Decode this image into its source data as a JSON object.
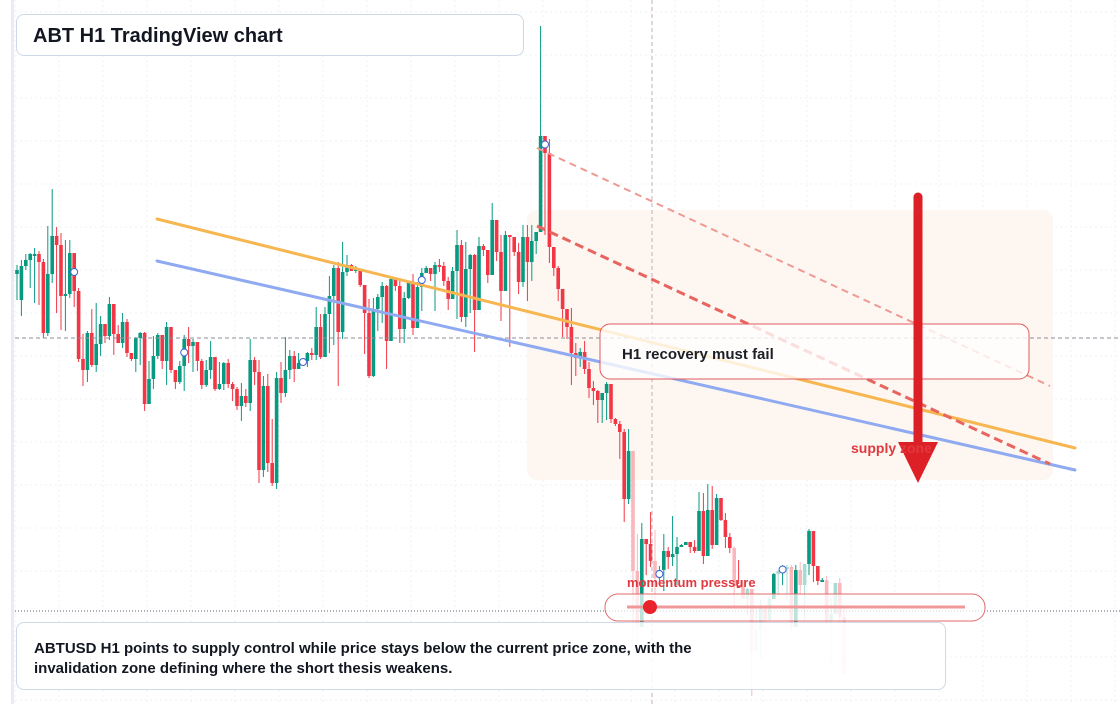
{
  "header": {
    "title": "ABT H1 TradingView chart"
  },
  "annotations": {
    "recovery_label": "H1 recovery must fail",
    "supply_label": "supply zone",
    "momentum_label": "momentum pressure",
    "caption": "ABTUSD H1 points to supply control while price stays below the current price zone, with the invalidation zone defining where the short thesis weakens."
  },
  "colors": {
    "up": "#089981",
    "down": "#f23645",
    "orange_line": "#f7b650",
    "blue_line": "#8faaf0",
    "trend_red": "#e8645f",
    "arrow_red": "#dd1f26"
  },
  "chart_data": {
    "type": "candlestick",
    "timeframe": "H1",
    "price_min": 0,
    "price_max": 704,
    "candles": [
      [
        274,
        270,
        300,
        265
      ],
      [
        300,
        266,
        316,
        260
      ],
      [
        266,
        260,
        270,
        254
      ],
      [
        260,
        254,
        288,
        253
      ],
      [
        254,
        254,
        303,
        248
      ],
      [
        254,
        262,
        305,
        251
      ],
      [
        262,
        333,
        338,
        259
      ],
      [
        333,
        274,
        336,
        226
      ],
      [
        274,
        236,
        283,
        189
      ],
      [
        236,
        245,
        313,
        227
      ],
      [
        245,
        296,
        330,
        233
      ],
      [
        296,
        294,
        331,
        240
      ],
      [
        294,
        253,
        298,
        240
      ],
      [
        253,
        291,
        307,
        271
      ],
      [
        291,
        359,
        362,
        288
      ],
      [
        359,
        370,
        386,
        334
      ],
      [
        370,
        333,
        382,
        331
      ],
      [
        333,
        365,
        367,
        309
      ],
      [
        365,
        344,
        372,
        303
      ],
      [
        344,
        324,
        356,
        316
      ],
      [
        324,
        336,
        343,
        326
      ],
      [
        336,
        304,
        340,
        297
      ],
      [
        304,
        334,
        355,
        328
      ],
      [
        334,
        343,
        338,
        325
      ],
      [
        343,
        322,
        348,
        313
      ],
      [
        322,
        353,
        357,
        319
      ],
      [
        353,
        359,
        361,
        355
      ],
      [
        359,
        338,
        372,
        337
      ],
      [
        338,
        333,
        365,
        332
      ],
      [
        333,
        404,
        411,
        332
      ],
      [
        404,
        379,
        381,
        361
      ],
      [
        379,
        356,
        389,
        336
      ],
      [
        356,
        335,
        359,
        333
      ],
      [
        335,
        361,
        369,
        356
      ],
      [
        361,
        327,
        385,
        322
      ],
      [
        327,
        370,
        373,
        348
      ],
      [
        370,
        382,
        389,
        370
      ],
      [
        382,
        366,
        384,
        361
      ],
      [
        366,
        339,
        391,
        335
      ],
      [
        339,
        346,
        363,
        327
      ],
      [
        346,
        342,
        372,
        339
      ],
      [
        342,
        361,
        371,
        357
      ],
      [
        361,
        385,
        389,
        359
      ],
      [
        385,
        370,
        387,
        360
      ],
      [
        370,
        357,
        379,
        341
      ],
      [
        357,
        389,
        391,
        357
      ],
      [
        389,
        384,
        390,
        362
      ],
      [
        384,
        363,
        390,
        362
      ],
      [
        363,
        384,
        388,
        359
      ],
      [
        384,
        389,
        401,
        382
      ],
      [
        389,
        406,
        410,
        387
      ],
      [
        406,
        396,
        421,
        383
      ],
      [
        396,
        403,
        407,
        389
      ],
      [
        403,
        360,
        411,
        339
      ],
      [
        360,
        372,
        385,
        357
      ],
      [
        372,
        470,
        483,
        360
      ],
      [
        470,
        386,
        477,
        376
      ],
      [
        386,
        463,
        472,
        374
      ],
      [
        463,
        483,
        486,
        419
      ],
      [
        483,
        378,
        489,
        372
      ],
      [
        378,
        393,
        403,
        362
      ],
      [
        393,
        370,
        397,
        337
      ],
      [
        370,
        356,
        379,
        350
      ],
      [
        356,
        369,
        382,
        351
      ],
      [
        369,
        363,
        368,
        353
      ],
      [
        363,
        361,
        362,
        361
      ],
      [
        361,
        353,
        367,
        352
      ],
      [
        353,
        355,
        360,
        348
      ],
      [
        355,
        327,
        360,
        307
      ],
      [
        327,
        357,
        359,
        314
      ],
      [
        357,
        314,
        354,
        307
      ],
      [
        314,
        296,
        353,
        276
      ],
      [
        296,
        268,
        345,
        265
      ],
      [
        268,
        332,
        386,
        262
      ],
      [
        332,
        272,
        339,
        242
      ],
      [
        272,
        265,
        276,
        255
      ],
      [
        265,
        271,
        269,
        264
      ],
      [
        271,
        269,
        273,
        266
      ],
      [
        269,
        285,
        287,
        279
      ],
      [
        285,
        313,
        354,
        297
      ],
      [
        313,
        376,
        378,
        299
      ],
      [
        376,
        309,
        377,
        298
      ],
      [
        309,
        297,
        331,
        294
      ],
      [
        297,
        286,
        323,
        282
      ],
      [
        286,
        341,
        369,
        285
      ],
      [
        341,
        279,
        340,
        277
      ],
      [
        279,
        286,
        291,
        283
      ],
      [
        286,
        329,
        343,
        281
      ],
      [
        329,
        298,
        343,
        292
      ],
      [
        298,
        283,
        299,
        282
      ],
      [
        283,
        328,
        335,
        274
      ],
      [
        328,
        287,
        326,
        282
      ],
      [
        287,
        273,
        311,
        268
      ],
      [
        273,
        268,
        268,
        266
      ],
      [
        268,
        274,
        281,
        269
      ],
      [
        274,
        265,
        311,
        262
      ],
      [
        265,
        266,
        272,
        259
      ],
      [
        266,
        281,
        286,
        262
      ],
      [
        281,
        299,
        310,
        277
      ],
      [
        299,
        271,
        296,
        267
      ],
      [
        271,
        245,
        319,
        230
      ],
      [
        245,
        317,
        322,
        240
      ],
      [
        317,
        269,
        327,
        242
      ],
      [
        269,
        255,
        313,
        254
      ],
      [
        255,
        310,
        352,
        254
      ],
      [
        310,
        246,
        275,
        237
      ],
      [
        246,
        250,
        256,
        244
      ],
      [
        250,
        275,
        283,
        250
      ],
      [
        275,
        220,
        249,
        203
      ],
      [
        220,
        252,
        261,
        224
      ],
      [
        252,
        291,
        321,
        235
      ],
      [
        291,
        235,
        261,
        231
      ],
      [
        235,
        237,
        347,
        235
      ],
      [
        237,
        252,
        256,
        247
      ],
      [
        252,
        282,
        294,
        243
      ],
      [
        282,
        237,
        287,
        225
      ],
      [
        237,
        262,
        301,
        225
      ],
      [
        262,
        241,
        281,
        225
      ],
      [
        241,
        232,
        254,
        232
      ],
      [
        232,
        136,
        223,
        26
      ],
      [
        136,
        153,
        235,
        141
      ],
      [
        153,
        247,
        263,
        139
      ],
      [
        247,
        268,
        276,
        267
      ],
      [
        268,
        289,
        301,
        266
      ],
      [
        289,
        309,
        337,
        294
      ],
      [
        309,
        327,
        339,
        318
      ],
      [
        327,
        353,
        385,
        308
      ],
      [
        353,
        358,
        376,
        343
      ],
      [
        358,
        352,
        367,
        348
      ],
      [
        352,
        369,
        374,
        341
      ],
      [
        369,
        388,
        398,
        362
      ],
      [
        388,
        391,
        405,
        381
      ],
      [
        391,
        400,
        423,
        390
      ],
      [
        400,
        393,
        423,
        393
      ],
      [
        393,
        384,
        420,
        382
      ],
      [
        384,
        419,
        423,
        393
      ],
      [
        419,
        424,
        426,
        418
      ],
      [
        424,
        432,
        459,
        421
      ],
      [
        432,
        499,
        522,
        429
      ],
      [
        499,
        451,
        504,
        429
      ],
      [
        451,
        571,
        641,
        451
      ],
      [
        571,
        627,
        640,
        534
      ],
      [
        627,
        539,
        545,
        523
      ],
      [
        539,
        544,
        575,
        540
      ],
      [
        544,
        561,
        567,
        512
      ],
      [
        561,
        578,
        606,
        530
      ],
      [
        578,
        570,
        584,
        566
      ],
      [
        570,
        551,
        591,
        534
      ],
      [
        551,
        557,
        569,
        547
      ],
      [
        557,
        554,
        566,
        516
      ],
      [
        554,
        547,
        585,
        537
      ],
      [
        547,
        545,
        547,
        544
      ],
      [
        545,
        542,
        545,
        544
      ],
      [
        542,
        547,
        553,
        544
      ],
      [
        547,
        551,
        553,
        540
      ],
      [
        551,
        511,
        550,
        492
      ],
      [
        511,
        556,
        564,
        493
      ],
      [
        556,
        510,
        522,
        484
      ],
      [
        510,
        545,
        549,
        486
      ],
      [
        545,
        498,
        508,
        494
      ],
      [
        498,
        520,
        521,
        499
      ],
      [
        520,
        537,
        548,
        513
      ],
      [
        537,
        548,
        553,
        533
      ],
      [
        548,
        586,
        608,
        546
      ],
      [
        586,
        587,
        584,
        560
      ],
      [
        587,
        599,
        596,
        580
      ],
      [
        599,
        589,
        615,
        588
      ],
      [
        589,
        651,
        696,
        589
      ],
      [
        651,
        630,
        638,
        606
      ],
      [
        630,
        606,
        659,
        600
      ],
      [
        606,
        620,
        634,
        613
      ],
      [
        620,
        599,
        617,
        597
      ],
      [
        599,
        574,
        579,
        573
      ],
      [
        574,
        571,
        596,
        570
      ],
      [
        571,
        568,
        585,
        565
      ],
      [
        568,
        567,
        600,
        565
      ],
      [
        567,
        627,
        632,
        565
      ],
      [
        627,
        570,
        577,
        565
      ],
      [
        570,
        585,
        595,
        562
      ],
      [
        585,
        564,
        620,
        564
      ],
      [
        564,
        531,
        575,
        529
      ],
      [
        531,
        566,
        582,
        540
      ],
      [
        566,
        581,
        585,
        566
      ],
      [
        581,
        580,
        582,
        578
      ],
      [
        580,
        621,
        624,
        576
      ],
      [
        621,
        614,
        664,
        598
      ],
      [
        614,
        583,
        600,
        583
      ],
      [
        583,
        617,
        622,
        578
      ],
      [
        617,
        673,
        674,
        606
      ]
    ],
    "indicator_lines": [
      {
        "name": "",
        "color_key": "orange_line",
        "y_start": 219,
        "y_end": 448
      },
      {
        "name": "",
        "color_key": "blue_line",
        "y_start": 261,
        "y_end": 470
      }
    ]
  }
}
